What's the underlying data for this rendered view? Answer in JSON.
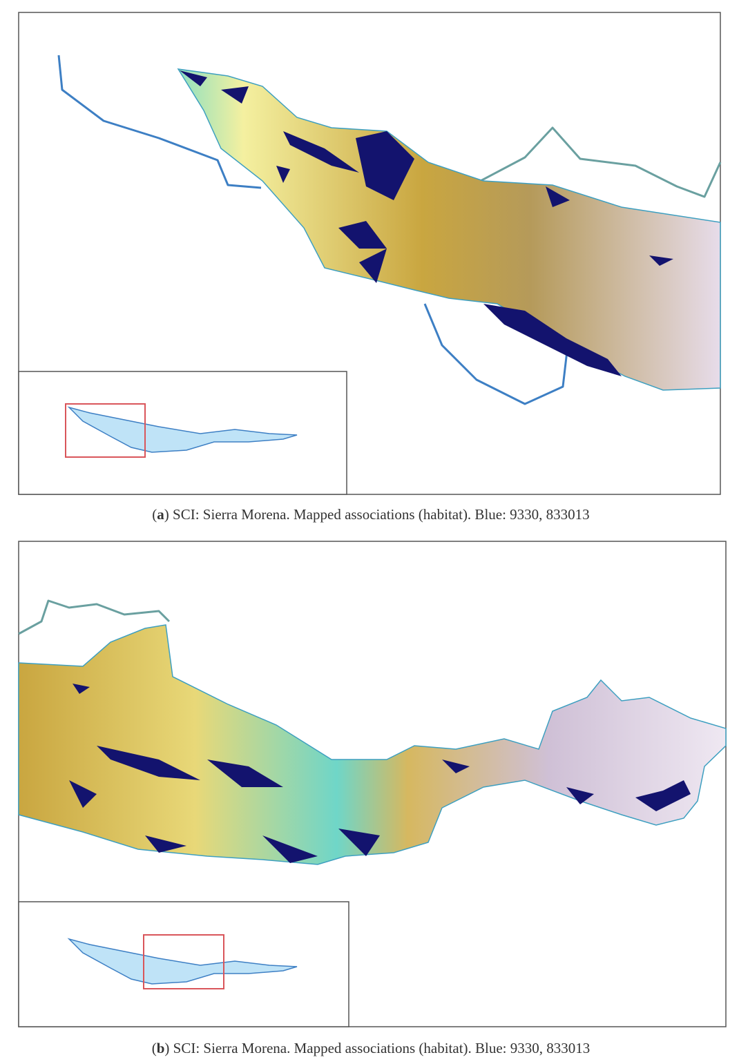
{
  "panels": [
    {
      "caption": {
        "open": "(",
        "label": "a",
        "text": ") SCI: Sierra Morena. Mapped associations (habitat). Blue: 9330, 833013"
      }
    },
    {
      "caption": {
        "open": "(",
        "label": "b",
        "text": ") SCI: Sierra Morena. Mapped associations (habitat). Blue: 9330, 833013"
      }
    }
  ]
}
